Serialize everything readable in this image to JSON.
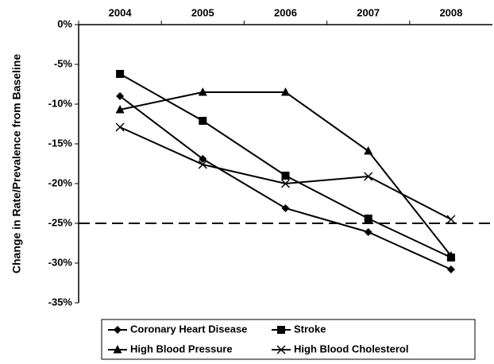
{
  "chart_data": {
    "type": "line",
    "y_label": "Change in Rate/Prevalence from Baseline",
    "categories": [
      "2004",
      "2005",
      "2006",
      "2007",
      "2008"
    ],
    "ylim": [
      -35,
      0
    ],
    "yticks": [
      {
        "value": 0,
        "label": "0%"
      },
      {
        "value": -5,
        "label": "-5%"
      },
      {
        "value": -10,
        "label": "-10%"
      },
      {
        "value": -15,
        "label": "-15%"
      },
      {
        "value": -20,
        "label": "-20%"
      },
      {
        "value": -25,
        "label": "-25%"
      },
      {
        "value": -30,
        "label": "-30%"
      },
      {
        "value": -35,
        "label": "-35%"
      }
    ],
    "reference_line": -25,
    "grid": false,
    "legend": "bottom",
    "series": [
      {
        "name": "Coronary Heart Disease",
        "color": "#000000",
        "marker": "diamond",
        "values": [
          -9.0,
          -16.9,
          -23.1,
          -26.1,
          -30.8
        ]
      },
      {
        "name": "Stroke",
        "color": "#000000",
        "marker": "square",
        "values": [
          -6.2,
          -12.1,
          -19.0,
          -24.4,
          -29.3
        ]
      },
      {
        "name": "High Blood Pressure",
        "color": "#000000",
        "marker": "triangle",
        "values": [
          -10.7,
          -8.5,
          -8.5,
          -15.9,
          -29.1
        ]
      },
      {
        "name": "High Blood Cholesterol",
        "color": "#000000",
        "marker": "x",
        "values": [
          -12.9,
          -17.6,
          -20.0,
          -19.1,
          -24.5
        ]
      }
    ]
  }
}
